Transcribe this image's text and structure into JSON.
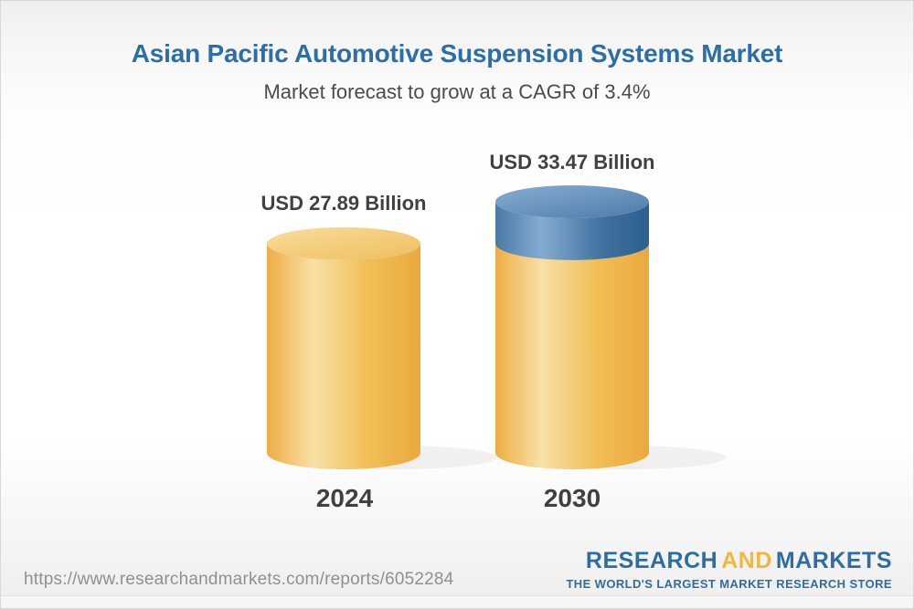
{
  "header": {
    "title": "Asian Pacific Automotive Suspension Systems Market",
    "subtitle": "Market forecast to grow at a CAGR of 3.4%"
  },
  "chart_data": {
    "type": "bar",
    "variant": "3d-cylinder",
    "title": "Asian Pacific Automotive Suspension Systems Market",
    "subtitle": "Market forecast to grow at a CAGR of 3.4%",
    "unit": "USD Billion",
    "cagr_percent": 3.4,
    "categories": [
      "2024",
      "2030"
    ],
    "values": [
      27.89,
      33.47
    ],
    "ylim": [
      0,
      33.47
    ],
    "legend": "none",
    "grid": false,
    "bars": [
      {
        "category": "2024",
        "label": "USD 27.89 Billion",
        "total": 27.89,
        "segments": [
          {
            "name": "market-size-2024",
            "value": 27.89,
            "color_key": "yellow"
          }
        ]
      },
      {
        "category": "2030",
        "label": "USD 33.47 Billion",
        "total": 33.47,
        "segments": [
          {
            "name": "base-market",
            "value": 27.89,
            "color_key": "yellow"
          },
          {
            "name": "forecast-growth",
            "value": 5.58,
            "color_key": "blue"
          }
        ]
      }
    ],
    "colors": {
      "yellow": "#F2C360",
      "blue": "#5B88B3"
    }
  },
  "footer": {
    "url": "https://www.researchandmarkets.com/reports/6052284",
    "logo": {
      "research": "RESEARCH",
      "and": "AND",
      "markets": "MARKETS",
      "tagline": "THE WORLD'S LARGEST MARKET RESEARCH STORE"
    },
    "colors": {
      "logo_blue": "#2E6DA3",
      "logo_yellow": "#F2B83D"
    }
  },
  "theme": {
    "title_blue": "#2B6EA8",
    "text_dark": "#3F4142",
    "text_gray": "#8F9091"
  }
}
